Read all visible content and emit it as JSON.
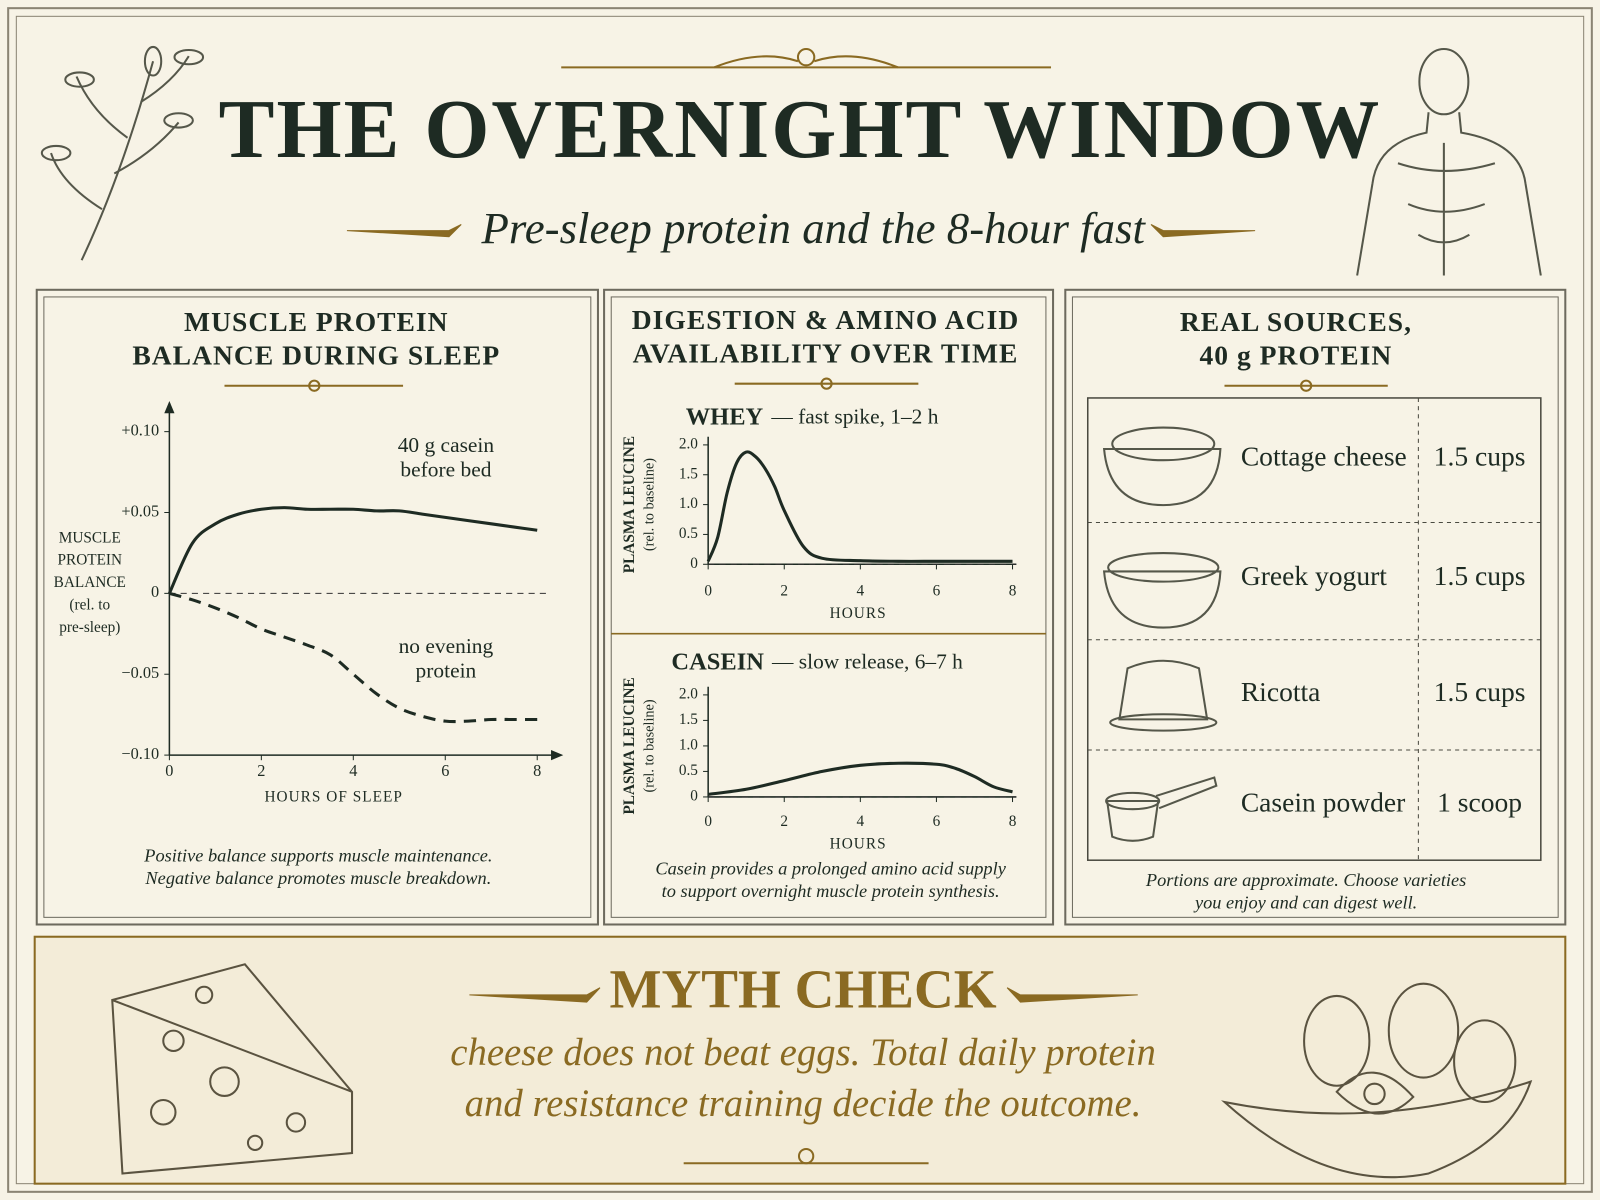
{
  "header": {
    "title": "THE OVERNIGHT WINDOW",
    "subtitle": "Pre-sleep protein and the 8-hour fast"
  },
  "panels": [
    {
      "title": [
        "MUSCLE PROTEIN",
        "BALANCE DURING SLEEP"
      ],
      "caption": [
        "Positive balance supports muscle maintenance.",
        "Negative balance promotes muscle breakdown."
      ]
    },
    {
      "title": [
        "DIGESTION & AMINO ACID",
        "AVAILABILITY OVER TIME"
      ],
      "caption": [
        "Casein provides a prolonged amino acid supply",
        "to support overnight muscle protein synthesis."
      ]
    },
    {
      "title": [
        "REAL SOURCES,",
        "40 g PROTEIN"
      ],
      "rows": [
        [
          "Cottage cheese",
          "1.5 cups"
        ],
        [
          "Greek yogurt",
          "1.5 cups"
        ],
        [
          "Ricotta",
          "1.5 cups"
        ],
        [
          "Casein powder",
          "1 scoop"
        ]
      ],
      "caption": [
        "Portions are approximate. Choose varieties",
        "you enjoy and can digest well."
      ]
    }
  ],
  "myth": {
    "title": "MYTH CHECK",
    "text": [
      "cheese does not beat eggs. Total daily protein",
      "and resistance training decide the outcome."
    ]
  },
  "chart_data": [
    {
      "type": "line",
      "y_label": [
        "MUSCLE",
        "PROTEIN",
        "BALANCE",
        "(rel. to",
        "pre-sleep)"
      ],
      "x_label": "HOURS OF SLEEP",
      "x": [
        0,
        0.5,
        1,
        1.5,
        2,
        2.5,
        3,
        3.5,
        4,
        4.5,
        5,
        5.5,
        6,
        6.5,
        7,
        7.5,
        8
      ],
      "series": [
        {
          "name": "40 g casein before bed",
          "color": "#1e2b23",
          "line_style": "solid",
          "values": [
            0,
            0.031,
            0.043,
            0.049,
            0.052,
            0.053,
            0.052,
            0.052,
            0.052,
            0.051,
            0.051,
            0.049,
            0.047,
            0.045,
            0.043,
            0.041,
            0.039
          ]
        },
        {
          "name": "no evening protein",
          "color": "#1e2b23",
          "line_style": "dashed",
          "values": [
            0,
            -0.004,
            -0.009,
            -0.015,
            -0.022,
            -0.027,
            -0.032,
            -0.038,
            -0.05,
            -0.062,
            -0.071,
            -0.076,
            -0.079,
            -0.079,
            -0.078,
            -0.078,
            -0.078
          ]
        }
      ],
      "xlim": [
        0,
        8.3
      ],
      "ylim": [
        -0.1,
        0.1
      ],
      "xticks": [
        0,
        2,
        4,
        6,
        8
      ],
      "yticks": [
        {
          "value": 0.1,
          "label": "+0.10"
        },
        {
          "value": 0.05,
          "label": "+0.05"
        },
        0,
        {
          "value": -0.05,
          "label": "−0.05"
        },
        {
          "value": -0.1,
          "label": "−0.10"
        }
      ],
      "zero_line": true
    },
    {
      "type": "line",
      "title": "WHEY",
      "title_note": "— fast spike, 1–2 h",
      "y_label": [
        "PLASMA LEUCINE",
        "(rel. to baseline)"
      ],
      "x_label": "HOURS",
      "x": [
        0,
        0.25,
        0.5,
        0.75,
        1,
        1.25,
        1.5,
        1.75,
        2,
        2.5,
        3,
        4,
        5,
        6,
        7,
        8
      ],
      "values": [
        0.05,
        0.45,
        1.2,
        1.7,
        1.88,
        1.8,
        1.6,
        1.3,
        0.9,
        0.3,
        0.1,
        0.06,
        0.05,
        0.05,
        0.05,
        0.05
      ],
      "color": "#1e2b23",
      "xlim": [
        0,
        8.1
      ],
      "ylim": [
        0,
        2
      ],
      "xticks": [
        0,
        2,
        4,
        6,
        8
      ],
      "yticks": [
        {
          "value": 2,
          "label": "2.0"
        },
        1.5,
        {
          "value": 1,
          "label": "1.0"
        },
        0.5,
        0
      ],
      "zero_line": true
    },
    {
      "type": "line",
      "title": "CASEIN",
      "title_note": "— slow release, 6–7 h",
      "y_label": [
        "PLASMA LEUCINE",
        "(rel. to baseline)"
      ],
      "x_label": "HOURS",
      "x": [
        0,
        1,
        2,
        3,
        4,
        5,
        6,
        6.5,
        7,
        7.5,
        8
      ],
      "values": [
        0.05,
        0.15,
        0.32,
        0.5,
        0.62,
        0.66,
        0.64,
        0.56,
        0.4,
        0.2,
        0.1
      ],
      "color": "#1e2b23",
      "xlim": [
        0,
        8.1
      ],
      "ylim": [
        0,
        2
      ],
      "xticks": [
        0,
        2,
        4,
        6,
        8
      ],
      "yticks": [
        {
          "value": 2,
          "label": "2.0"
        },
        1.5,
        {
          "value": 1,
          "label": "1.0"
        },
        0.5,
        0
      ],
      "zero_line": true
    }
  ]
}
